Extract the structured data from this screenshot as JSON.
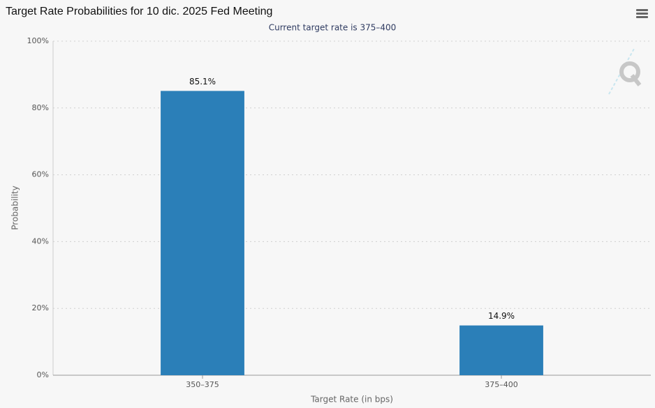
{
  "chart_data": {
    "type": "bar",
    "title": "Target Rate Probabilities for 10 dic. 2025 Fed Meeting",
    "subtitle": "Current target rate is 375–400",
    "x_label": "Target Rate (in bps)",
    "y_label": "Probability",
    "categories": [
      "350–375",
      "375–400"
    ],
    "values": [
      85.1,
      14.9
    ],
    "value_labels": [
      "85.1%",
      "14.9%"
    ],
    "color": "#2b7fb8",
    "ylim": [
      0,
      100
    ],
    "yticks": [
      {
        "value": 0,
        "label": "0%"
      },
      {
        "value": 20,
        "label": "20%"
      },
      {
        "value": 40,
        "label": "40%"
      },
      {
        "value": 60,
        "label": "60%"
      },
      {
        "value": 80,
        "label": "80%"
      },
      {
        "value": 100,
        "label": "100%"
      }
    ],
    "grid": true
  }
}
